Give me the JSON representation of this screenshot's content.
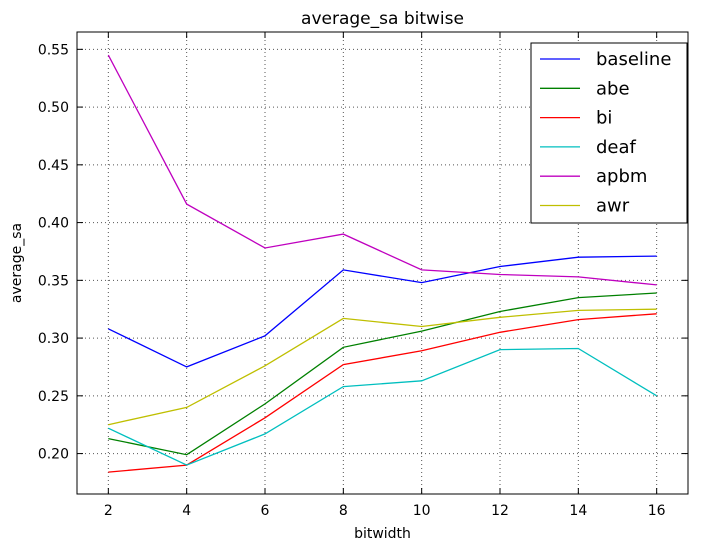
{
  "chart_data": {
    "type": "line",
    "title": "average_sa bitwise",
    "xlabel": "bitwidth",
    "ylabel": "average_sa",
    "x": [
      2,
      4,
      6,
      8,
      10,
      12,
      14,
      16
    ],
    "xlim": [
      1.2,
      16.8
    ],
    "ylim": [
      0.165,
      0.565
    ],
    "xticks": [
      2,
      4,
      6,
      8,
      10,
      12,
      14,
      16
    ],
    "yticks": [
      0.2,
      0.25,
      0.3,
      0.35,
      0.4,
      0.45,
      0.5,
      0.55
    ],
    "yticklabels": [
      "0.20",
      "0.25",
      "0.30",
      "0.35",
      "0.40",
      "0.45",
      "0.50",
      "0.55"
    ],
    "grid": true,
    "legend_position": "top-right",
    "series": [
      {
        "name": "baseline",
        "color": "#0000ff",
        "values": [
          0.308,
          0.275,
          0.302,
          0.359,
          0.348,
          0.362,
          0.37,
          0.371
        ]
      },
      {
        "name": "abe",
        "color": "#008000",
        "values": [
          0.213,
          0.199,
          0.243,
          0.292,
          0.306,
          0.323,
          0.335,
          0.339
        ]
      },
      {
        "name": "bi",
        "color": "#ff0000",
        "values": [
          0.184,
          0.19,
          0.231,
          0.277,
          0.289,
          0.305,
          0.316,
          0.321
        ]
      },
      {
        "name": "deaf",
        "color": "#00bfbf",
        "values": [
          0.222,
          0.19,
          0.217,
          0.258,
          0.263,
          0.29,
          0.291,
          0.25
        ]
      },
      {
        "name": "apbm",
        "color": "#bf00bf",
        "values": [
          0.545,
          0.416,
          0.378,
          0.39,
          0.359,
          0.355,
          0.353,
          0.346
        ]
      },
      {
        "name": "awr",
        "color": "#bfbf00",
        "values": [
          0.225,
          0.24,
          0.276,
          0.317,
          0.31,
          0.318,
          0.324,
          0.325
        ]
      }
    ]
  }
}
